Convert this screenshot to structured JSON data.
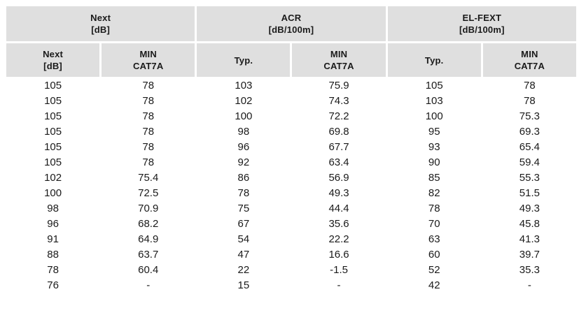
{
  "groups": [
    {
      "title": "Next",
      "unit": "[dB]"
    },
    {
      "title": "ACR",
      "unit": "[dB/100m]"
    },
    {
      "title": "EL-FEXT",
      "unit": "[dB/100m]"
    }
  ],
  "subheaders": [
    {
      "line1": "Next",
      "line2": "[dB]"
    },
    {
      "line1": "MIN",
      "line2": "CAT7A"
    },
    {
      "line1": "Typ.",
      "line2": ""
    },
    {
      "line1": "MIN",
      "line2": "CAT7A"
    },
    {
      "line1": "Typ.",
      "line2": ""
    },
    {
      "line1": "MIN",
      "line2": "CAT7A"
    }
  ],
  "rows": [
    [
      "105",
      "78",
      "103",
      "75.9",
      "105",
      "78"
    ],
    [
      "105",
      "78",
      "102",
      "74.3",
      "103",
      "78"
    ],
    [
      "105",
      "78",
      "100",
      "72.2",
      "100",
      "75.3"
    ],
    [
      "105",
      "78",
      "98",
      "69.8",
      "95",
      "69.3"
    ],
    [
      "105",
      "78",
      "96",
      "67.7",
      "93",
      "65.4"
    ],
    [
      "105",
      "78",
      "92",
      "63.4",
      "90",
      "59.4"
    ],
    [
      "102",
      "75.4",
      "86",
      "56.9",
      "85",
      "55.3"
    ],
    [
      "100",
      "72.5",
      "78",
      "49.3",
      "82",
      "51.5"
    ],
    [
      "98",
      "70.9",
      "75",
      "44.4",
      "78",
      "49.3"
    ],
    [
      "96",
      "68.2",
      "67",
      "35.6",
      "70",
      "45.8"
    ],
    [
      "91",
      "64.9",
      "54",
      "22.2",
      "63",
      "41.3"
    ],
    [
      "88",
      "63.7",
      "47",
      "16.6",
      "60",
      "39.7"
    ],
    [
      "78",
      "60.4",
      "22",
      "-1.5",
      "52",
      "35.3"
    ],
    [
      "76",
      "-",
      "15",
      "-",
      "42",
      "-"
    ]
  ]
}
